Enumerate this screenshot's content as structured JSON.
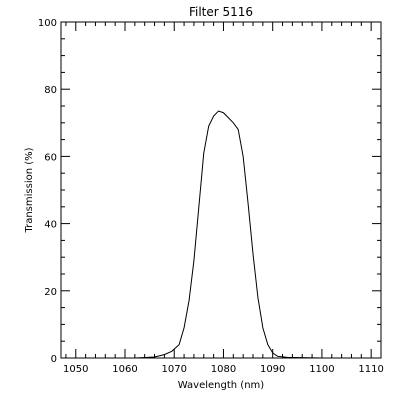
{
  "chart_data": {
    "type": "line",
    "title": "Filter 5116",
    "xlabel": "Wavelength (nm)",
    "ylabel": "Transmission (%)",
    "xlim": [
      1047,
      1112
    ],
    "ylim": [
      0,
      100
    ],
    "grid": false,
    "x_ticks": [
      1050,
      1060,
      1070,
      1080,
      1090,
      1100,
      1110
    ],
    "y_ticks": [
      0,
      20,
      40,
      60,
      80,
      100
    ],
    "series": [
      {
        "x": [
          1047,
          1055,
          1062,
          1066,
          1068,
          1069.5,
          1071,
          1072,
          1073,
          1074,
          1075,
          1076,
          1077,
          1078,
          1079,
          1080,
          1081,
          1082,
          1083,
          1084,
          1085,
          1086,
          1087,
          1088,
          1089,
          1090,
          1091,
          1093,
          1100,
          1112
        ],
        "y": [
          0,
          0,
          0,
          0.3,
          1,
          2,
          4,
          9,
          17,
          29,
          45,
          61,
          69,
          72,
          73.5,
          73,
          71.5,
          70,
          68,
          60,
          46,
          31,
          18,
          9,
          4,
          1.5,
          0.5,
          0.2,
          0,
          0
        ],
        "color": "#000000"
      }
    ]
  }
}
